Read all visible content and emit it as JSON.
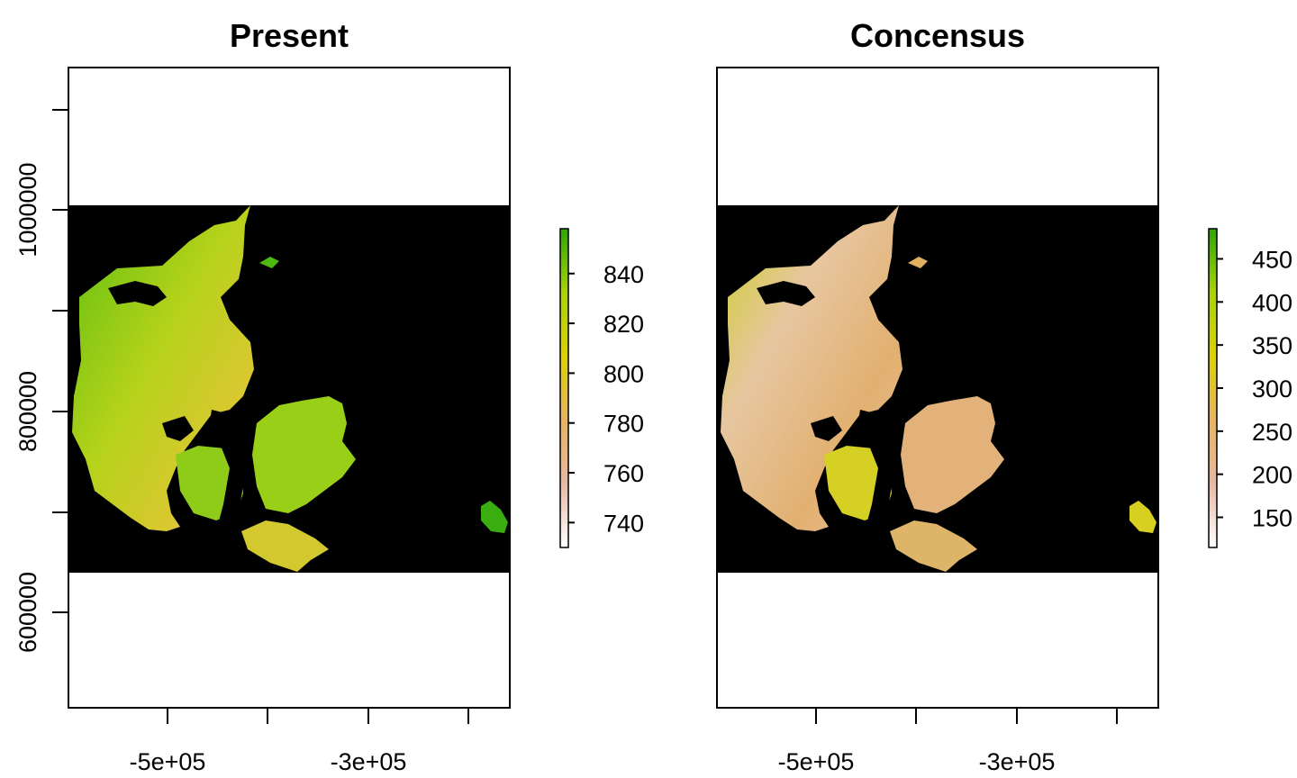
{
  "panels": [
    {
      "title": "Present",
      "x_ticks": [
        "-5e+05",
        "",
        "-3e+05",
        ""
      ],
      "y_ticks": [
        "",
        "1000000",
        "",
        "800000",
        "",
        "600000"
      ],
      "legend": {
        "ticks": [
          "840",
          "820",
          "800",
          "780",
          "760",
          "740"
        ],
        "colors": [
          "#ffffff",
          "#eab8a0",
          "#e8b45e",
          "#dfd000",
          "#a8d400",
          "#2aa800"
        ],
        "range": [
          730,
          858
        ]
      }
    },
    {
      "title": "Concensus",
      "x_ticks": [
        "-5e+05",
        "",
        "-3e+05",
        ""
      ],
      "y_ticks": [],
      "legend": {
        "ticks": [
          "450",
          "400",
          "350",
          "300",
          "250",
          "200",
          "150"
        ],
        "colors": [
          "#ffffff",
          "#eab8a0",
          "#e8b45e",
          "#dfd000",
          "#a8d400",
          "#2aa800"
        ],
        "range": [
          115,
          485
        ]
      }
    }
  ]
}
